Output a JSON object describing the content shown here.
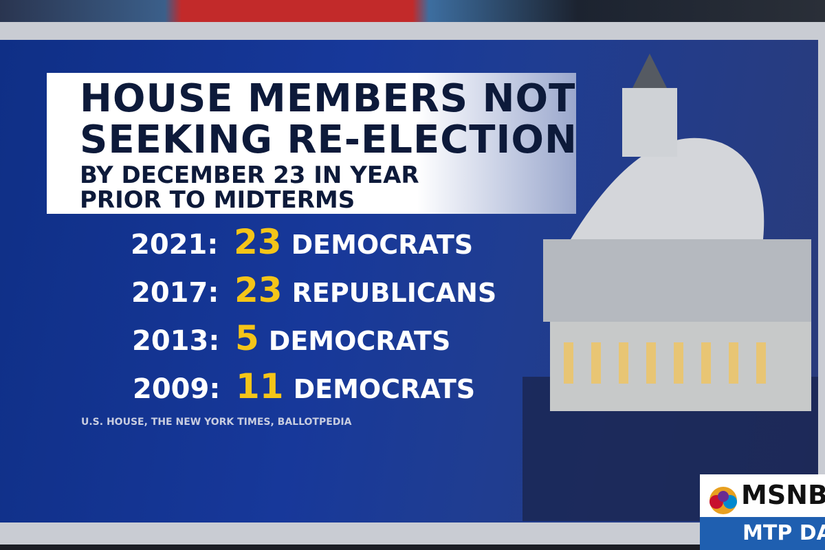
{
  "header": {
    "title_lines": [
      "HOUSE MEMBERS NOT",
      "SEEKING RE-ELECTION"
    ],
    "subtitle_lines": [
      "BY DECEMBER 23 IN YEAR",
      "PRIOR TO MIDTERMS"
    ]
  },
  "rows": [
    {
      "year": "2021:",
      "count": 23,
      "party": "DEMOCRATS"
    },
    {
      "year": "2017:",
      "count": 23,
      "party": "REPUBLICANS"
    },
    {
      "year": "2013:",
      "count": 5,
      "party": "DEMOCRATS"
    },
    {
      "year": "2009:",
      "count": 11,
      "party": "DEMOCRATS"
    }
  ],
  "source": "U.S. HOUSE, THE NEW YORK TIMES, BALLOTPEDIA",
  "logo": {
    "network": "MSNBC",
    "show": "MTP DAILY"
  }
}
